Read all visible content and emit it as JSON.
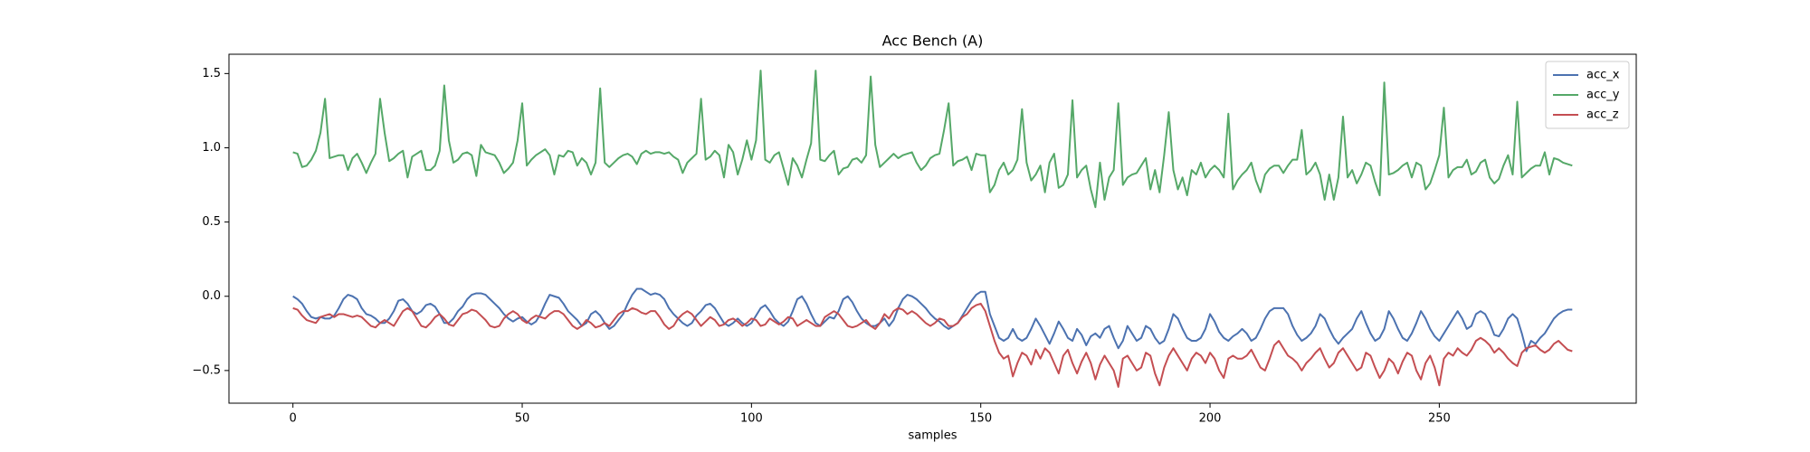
{
  "chart_data": {
    "type": "line",
    "title": "Acc Bench (A)",
    "xlabel": "samples",
    "legend": "upper right",
    "xlim": [
      -13.95,
      292.95
    ],
    "xticks": [
      0,
      50,
      100,
      150,
      200,
      250
    ],
    "ylim": [
      -0.72,
      1.63
    ],
    "yticks": [
      {
        "value": -0.5,
        "label": "−0.5"
      },
      {
        "value": 0,
        "label": "0.0"
      },
      0.5,
      {
        "value": 1,
        "label": "1.0"
      },
      1.5
    ],
    "x": [
      0,
      1,
      2,
      3,
      4,
      5,
      6,
      7,
      8,
      9,
      10,
      11,
      12,
      13,
      14,
      15,
      16,
      17,
      18,
      19,
      20,
      21,
      22,
      23,
      24,
      25,
      26,
      27,
      28,
      29,
      30,
      31,
      32,
      33,
      34,
      35,
      36,
      37,
      38,
      39,
      40,
      41,
      42,
      43,
      44,
      45,
      46,
      47,
      48,
      49,
      50,
      51,
      52,
      53,
      54,
      55,
      56,
      57,
      58,
      59,
      60,
      61,
      62,
      63,
      64,
      65,
      66,
      67,
      68,
      69,
      70,
      71,
      72,
      73,
      74,
      75,
      76,
      77,
      78,
      79,
      80,
      81,
      82,
      83,
      84,
      85,
      86,
      87,
      88,
      89,
      90,
      91,
      92,
      93,
      94,
      95,
      96,
      97,
      98,
      99,
      100,
      101,
      102,
      103,
      104,
      105,
      106,
      107,
      108,
      109,
      110,
      111,
      112,
      113,
      114,
      115,
      116,
      117,
      118,
      119,
      120,
      121,
      122,
      123,
      124,
      125,
      126,
      127,
      128,
      129,
      130,
      131,
      132,
      133,
      134,
      135,
      136,
      137,
      138,
      139,
      140,
      141,
      142,
      143,
      144,
      145,
      146,
      147,
      148,
      149,
      150,
      151,
      152,
      153,
      154,
      155,
      156,
      157,
      158,
      159,
      160,
      161,
      162,
      163,
      164,
      165,
      166,
      167,
      168,
      169,
      170,
      171,
      172,
      173,
      174,
      175,
      176,
      177,
      178,
      179,
      180,
      181,
      182,
      183,
      184,
      185,
      186,
      187,
      188,
      189,
      190,
      191,
      192,
      193,
      194,
      195,
      196,
      197,
      198,
      199,
      200,
      201,
      202,
      203,
      204,
      205,
      206,
      207,
      208,
      209,
      210,
      211,
      212,
      213,
      214,
      215,
      216,
      217,
      218,
      219,
      220,
      221,
      222,
      223,
      224,
      225,
      226,
      227,
      228,
      229,
      230,
      231,
      232,
      233,
      234,
      235,
      236,
      237,
      238,
      239,
      240,
      241,
      242,
      243,
      244,
      245,
      246,
      247,
      248,
      249,
      250,
      251,
      252,
      253,
      254,
      255,
      256,
      257,
      258,
      259,
      260,
      261,
      262,
      263,
      264,
      265,
      266,
      267,
      268,
      269,
      270,
      271,
      272,
      273,
      274,
      275,
      276,
      277,
      278,
      279
    ],
    "series": [
      {
        "name": "acc_x",
        "color": "#4c72b0",
        "values": [
          0.0,
          -0.02,
          -0.05,
          -0.1,
          -0.14,
          -0.15,
          -0.14,
          -0.15,
          -0.15,
          -0.13,
          -0.08,
          -0.02,
          0.01,
          0.0,
          -0.02,
          -0.08,
          -0.12,
          -0.13,
          -0.15,
          -0.18,
          -0.18,
          -0.15,
          -0.1,
          -0.03,
          -0.02,
          -0.05,
          -0.1,
          -0.12,
          -0.1,
          -0.06,
          -0.05,
          -0.07,
          -0.12,
          -0.18,
          -0.18,
          -0.15,
          -0.1,
          -0.07,
          -0.02,
          0.01,
          0.02,
          0.02,
          0.01,
          -0.02,
          -0.05,
          -0.08,
          -0.12,
          -0.15,
          -0.17,
          -0.15,
          -0.14,
          -0.17,
          -0.19,
          -0.17,
          -0.12,
          -0.05,
          0.01,
          0.0,
          -0.01,
          -0.05,
          -0.1,
          -0.13,
          -0.16,
          -0.2,
          -0.18,
          -0.12,
          -0.1,
          -0.13,
          -0.18,
          -0.22,
          -0.2,
          -0.16,
          -0.12,
          -0.05,
          0.01,
          0.05,
          0.05,
          0.03,
          0.01,
          0.02,
          0.01,
          -0.02,
          -0.08,
          -0.12,
          -0.15,
          -0.18,
          -0.2,
          -0.18,
          -0.13,
          -0.1,
          -0.06,
          -0.05,
          -0.08,
          -0.13,
          -0.18,
          -0.2,
          -0.18,
          -0.15,
          -0.18,
          -0.2,
          -0.18,
          -0.13,
          -0.08,
          -0.06,
          -0.1,
          -0.15,
          -0.18,
          -0.2,
          -0.17,
          -0.1,
          -0.02,
          0.0,
          -0.05,
          -0.12,
          -0.18,
          -0.2,
          -0.17,
          -0.14,
          -0.15,
          -0.1,
          -0.02,
          0.0,
          -0.04,
          -0.1,
          -0.15,
          -0.18,
          -0.2,
          -0.2,
          -0.18,
          -0.15,
          -0.2,
          -0.16,
          -0.08,
          -0.02,
          0.01,
          0.0,
          -0.02,
          -0.05,
          -0.08,
          -0.12,
          -0.15,
          -0.17,
          -0.2,
          -0.22,
          -0.2,
          -0.18,
          -0.13,
          -0.08,
          -0.03,
          0.01,
          0.03,
          0.03,
          -0.12,
          -0.2,
          -0.28,
          -0.3,
          -0.28,
          -0.22,
          -0.28,
          -0.3,
          -0.28,
          -0.22,
          -0.15,
          -0.2,
          -0.26,
          -0.32,
          -0.25,
          -0.17,
          -0.22,
          -0.28,
          -0.3,
          -0.22,
          -0.26,
          -0.33,
          -0.27,
          -0.25,
          -0.28,
          -0.22,
          -0.2,
          -0.28,
          -0.35,
          -0.3,
          -0.2,
          -0.25,
          -0.3,
          -0.28,
          -0.2,
          -0.22,
          -0.28,
          -0.32,
          -0.3,
          -0.22,
          -0.12,
          -0.15,
          -0.22,
          -0.28,
          -0.3,
          -0.3,
          -0.28,
          -0.22,
          -0.12,
          -0.17,
          -0.24,
          -0.28,
          -0.3,
          -0.27,
          -0.25,
          -0.22,
          -0.25,
          -0.3,
          -0.28,
          -0.22,
          -0.15,
          -0.1,
          -0.08,
          -0.08,
          -0.08,
          -0.12,
          -0.2,
          -0.26,
          -0.3,
          -0.28,
          -0.25,
          -0.2,
          -0.12,
          -0.15,
          -0.22,
          -0.28,
          -0.32,
          -0.28,
          -0.25,
          -0.22,
          -0.15,
          -0.1,
          -0.18,
          -0.25,
          -0.3,
          -0.28,
          -0.22,
          -0.1,
          -0.15,
          -0.22,
          -0.28,
          -0.3,
          -0.25,
          -0.18,
          -0.1,
          -0.15,
          -0.22,
          -0.27,
          -0.3,
          -0.25,
          -0.2,
          -0.15,
          -0.1,
          -0.15,
          -0.22,
          -0.2,
          -0.12,
          -0.1,
          -0.12,
          -0.18,
          -0.26,
          -0.27,
          -0.22,
          -0.15,
          -0.12,
          -0.15,
          -0.25,
          -0.37,
          -0.3,
          -0.32,
          -0.28,
          -0.25,
          -0.2,
          -0.15,
          -0.12,
          -0.1,
          -0.09,
          -0.09
        ]
      },
      {
        "name": "acc_y",
        "color": "#55a868",
        "values": [
          0.97,
          0.96,
          0.87,
          0.88,
          0.92,
          0.98,
          1.1,
          1.33,
          0.93,
          0.94,
          0.95,
          0.95,
          0.85,
          0.93,
          0.96,
          0.9,
          0.83,
          0.9,
          0.96,
          1.33,
          1.1,
          0.91,
          0.93,
          0.96,
          0.98,
          0.8,
          0.94,
          0.96,
          0.98,
          0.85,
          0.85,
          0.88,
          0.98,
          1.42,
          1.05,
          0.9,
          0.92,
          0.96,
          0.97,
          0.95,
          0.81,
          1.02,
          0.97,
          0.96,
          0.95,
          0.9,
          0.83,
          0.86,
          0.9,
          1.05,
          1.3,
          0.88,
          0.92,
          0.95,
          0.97,
          0.99,
          0.95,
          0.82,
          0.95,
          0.94,
          0.98,
          0.97,
          0.88,
          0.93,
          0.9,
          0.82,
          0.9,
          1.4,
          0.9,
          0.87,
          0.9,
          0.93,
          0.95,
          0.96,
          0.94,
          0.89,
          0.96,
          0.98,
          0.96,
          0.97,
          0.97,
          0.96,
          0.97,
          0.94,
          0.92,
          0.83,
          0.9,
          0.93,
          0.96,
          1.33,
          0.92,
          0.94,
          0.98,
          0.95,
          0.8,
          1.02,
          0.97,
          0.82,
          0.92,
          1.05,
          0.92,
          1.05,
          1.52,
          0.92,
          0.9,
          0.95,
          0.97,
          0.86,
          0.75,
          0.93,
          0.88,
          0.8,
          0.92,
          1.03,
          1.52,
          0.92,
          0.91,
          0.95,
          0.98,
          0.82,
          0.86,
          0.87,
          0.92,
          0.93,
          0.9,
          0.95,
          1.48,
          1.02,
          0.87,
          0.9,
          0.93,
          0.96,
          0.93,
          0.95,
          0.96,
          0.97,
          0.9,
          0.85,
          0.88,
          0.93,
          0.95,
          0.96,
          1.12,
          1.3,
          0.88,
          0.91,
          0.92,
          0.94,
          0.85,
          0.96,
          0.95,
          0.95,
          0.7,
          0.75,
          0.85,
          0.9,
          0.82,
          0.85,
          0.92,
          1.26,
          0.9,
          0.78,
          0.82,
          0.88,
          0.7,
          0.9,
          0.96,
          0.73,
          0.75,
          0.82,
          1.32,
          0.8,
          0.85,
          0.88,
          0.72,
          0.6,
          0.9,
          0.65,
          0.8,
          0.85,
          1.3,
          0.75,
          0.8,
          0.82,
          0.83,
          0.88,
          0.93,
          0.72,
          0.85,
          0.7,
          0.95,
          1.24,
          0.85,
          0.72,
          0.8,
          0.68,
          0.85,
          0.82,
          0.9,
          0.8,
          0.85,
          0.88,
          0.85,
          0.8,
          1.23,
          0.72,
          0.78,
          0.82,
          0.85,
          0.9,
          0.78,
          0.7,
          0.82,
          0.86,
          0.88,
          0.88,
          0.83,
          0.88,
          0.92,
          0.92,
          1.12,
          0.82,
          0.85,
          0.9,
          0.82,
          0.65,
          0.82,
          0.65,
          0.8,
          1.21,
          0.8,
          0.85,
          0.76,
          0.82,
          0.9,
          0.88,
          0.77,
          0.68,
          1.44,
          0.82,
          0.83,
          0.85,
          0.88,
          0.9,
          0.8,
          0.9,
          0.88,
          0.72,
          0.76,
          0.85,
          0.95,
          1.27,
          0.8,
          0.85,
          0.87,
          0.87,
          0.92,
          0.82,
          0.84,
          0.9,
          0.92,
          0.8,
          0.76,
          0.79,
          0.88,
          0.95,
          0.82,
          1.31,
          0.8,
          0.83,
          0.86,
          0.88,
          0.88,
          0.97,
          0.82,
          0.93,
          0.92,
          0.9,
          0.89,
          0.88
        ]
      },
      {
        "name": "acc_z",
        "color": "#c44e52",
        "values": [
          -0.08,
          -0.09,
          -0.13,
          -0.16,
          -0.17,
          -0.18,
          -0.14,
          -0.13,
          -0.12,
          -0.14,
          -0.12,
          -0.12,
          -0.13,
          -0.14,
          -0.13,
          -0.14,
          -0.17,
          -0.2,
          -0.21,
          -0.18,
          -0.16,
          -0.18,
          -0.2,
          -0.15,
          -0.1,
          -0.08,
          -0.1,
          -0.15,
          -0.2,
          -0.21,
          -0.18,
          -0.14,
          -0.12,
          -0.15,
          -0.19,
          -0.2,
          -0.16,
          -0.12,
          -0.11,
          -0.09,
          -0.1,
          -0.13,
          -0.16,
          -0.2,
          -0.21,
          -0.2,
          -0.15,
          -0.12,
          -0.1,
          -0.12,
          -0.16,
          -0.18,
          -0.15,
          -0.13,
          -0.14,
          -0.15,
          -0.12,
          -0.1,
          -0.1,
          -0.12,
          -0.16,
          -0.2,
          -0.22,
          -0.2,
          -0.16,
          -0.18,
          -0.21,
          -0.2,
          -0.18,
          -0.2,
          -0.16,
          -0.12,
          -0.1,
          -0.1,
          -0.08,
          -0.09,
          -0.11,
          -0.12,
          -0.1,
          -0.1,
          -0.14,
          -0.19,
          -0.22,
          -0.2,
          -0.15,
          -0.12,
          -0.1,
          -0.12,
          -0.16,
          -0.2,
          -0.17,
          -0.14,
          -0.16,
          -0.2,
          -0.19,
          -0.16,
          -0.15,
          -0.17,
          -0.2,
          -0.18,
          -0.15,
          -0.16,
          -0.2,
          -0.19,
          -0.15,
          -0.17,
          -0.19,
          -0.17,
          -0.14,
          -0.15,
          -0.2,
          -0.18,
          -0.16,
          -0.18,
          -0.2,
          -0.2,
          -0.14,
          -0.12,
          -0.1,
          -0.12,
          -0.16,
          -0.2,
          -0.21,
          -0.2,
          -0.18,
          -0.16,
          -0.2,
          -0.22,
          -0.18,
          -0.12,
          -0.15,
          -0.1,
          -0.08,
          -0.09,
          -0.12,
          -0.1,
          -0.12,
          -0.15,
          -0.18,
          -0.2,
          -0.18,
          -0.15,
          -0.16,
          -0.2,
          -0.2,
          -0.18,
          -0.14,
          -0.12,
          -0.08,
          -0.06,
          -0.05,
          -0.1,
          -0.2,
          -0.3,
          -0.38,
          -0.42,
          -0.4,
          -0.54,
          -0.45,
          -0.38,
          -0.4,
          -0.46,
          -0.36,
          -0.42,
          -0.35,
          -0.38,
          -0.45,
          -0.52,
          -0.4,
          -0.36,
          -0.45,
          -0.52,
          -0.44,
          -0.38,
          -0.45,
          -0.56,
          -0.46,
          -0.4,
          -0.45,
          -0.5,
          -0.61,
          -0.42,
          -0.4,
          -0.45,
          -0.5,
          -0.48,
          -0.38,
          -0.4,
          -0.52,
          -0.6,
          -0.48,
          -0.4,
          -0.35,
          -0.4,
          -0.45,
          -0.5,
          -0.42,
          -0.38,
          -0.4,
          -0.45,
          -0.38,
          -0.42,
          -0.5,
          -0.55,
          -0.42,
          -0.4,
          -0.42,
          -0.42,
          -0.4,
          -0.36,
          -0.42,
          -0.48,
          -0.5,
          -0.42,
          -0.33,
          -0.3,
          -0.35,
          -0.4,
          -0.42,
          -0.45,
          -0.5,
          -0.45,
          -0.42,
          -0.38,
          -0.35,
          -0.42,
          -0.48,
          -0.45,
          -0.38,
          -0.35,
          -0.4,
          -0.45,
          -0.5,
          -0.48,
          -0.38,
          -0.4,
          -0.48,
          -0.55,
          -0.5,
          -0.42,
          -0.45,
          -0.52,
          -0.44,
          -0.38,
          -0.4,
          -0.5,
          -0.56,
          -0.45,
          -0.4,
          -0.48,
          -0.6,
          -0.42,
          -0.38,
          -0.4,
          -0.35,
          -0.38,
          -0.4,
          -0.36,
          -0.3,
          -0.28,
          -0.3,
          -0.33,
          -0.38,
          -0.35,
          -0.38,
          -0.42,
          -0.45,
          -0.47,
          -0.38,
          -0.35,
          -0.34,
          -0.33,
          -0.36,
          -0.38,
          -0.36,
          -0.32,
          -0.3,
          -0.33,
          -0.36,
          -0.37
        ]
      }
    ]
  }
}
